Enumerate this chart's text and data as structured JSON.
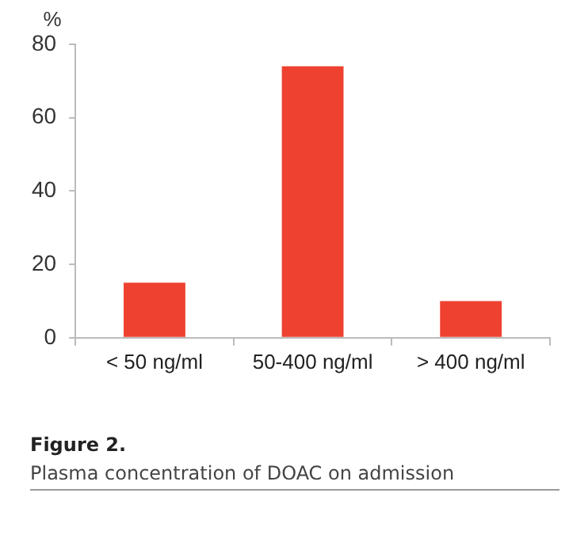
{
  "chart_data": {
    "type": "bar",
    "title": "Figure 2.",
    "subtitle": "Plasma concentration of DOAC on admission",
    "ylabel": "%",
    "categories": [
      "< 50 ng/ml",
      "50-400 ng/ml",
      "> 400 ng/ml"
    ],
    "values": [
      15,
      74,
      10
    ],
    "color": "#ee4130",
    "ylim": [
      0,
      80
    ],
    "yticks": [
      0,
      20,
      40,
      60,
      80
    ],
    "grid": false
  }
}
